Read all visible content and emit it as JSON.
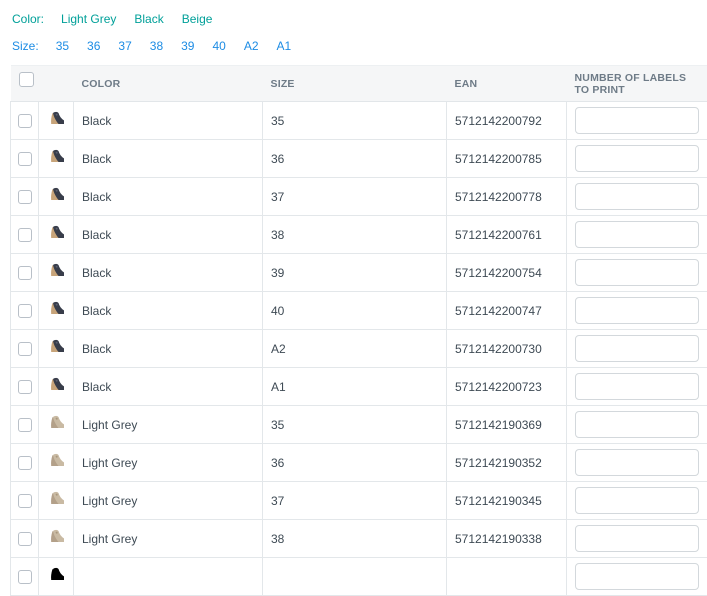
{
  "filters": {
    "color": {
      "label": "Color:",
      "options": [
        "Light Grey",
        "Black",
        "Beige"
      ]
    },
    "size": {
      "label": "Size:",
      "options": [
        "35",
        "36",
        "37",
        "38",
        "39",
        "40",
        "A2",
        "A1"
      ]
    }
  },
  "table": {
    "headers": {
      "color": "COLOR",
      "size": "SIZE",
      "ean": "EAN",
      "labels_to_print": "NUMBER OF LABELS TO PRINT"
    },
    "rows": [
      {
        "color": "Black",
        "size": "35",
        "ean": "5712142200792",
        "labels_value": "",
        "selected": false,
        "shoe_icon": "black-wedge-boot"
      },
      {
        "color": "Black",
        "size": "36",
        "ean": "5712142200785",
        "labels_value": "",
        "selected": false,
        "shoe_icon": "black-wedge-boot"
      },
      {
        "color": "Black",
        "size": "37",
        "ean": "5712142200778",
        "labels_value": "",
        "selected": false,
        "shoe_icon": "black-wedge-boot"
      },
      {
        "color": "Black",
        "size": "38",
        "ean": "5712142200761",
        "labels_value": "",
        "selected": false,
        "shoe_icon": "black-wedge-boot"
      },
      {
        "color": "Black",
        "size": "39",
        "ean": "5712142200754",
        "labels_value": "",
        "selected": false,
        "shoe_icon": "black-wedge-boot"
      },
      {
        "color": "Black",
        "size": "40",
        "ean": "5712142200747",
        "labels_value": "",
        "selected": false,
        "shoe_icon": "black-wedge-boot"
      },
      {
        "color": "Black",
        "size": "A2",
        "ean": "5712142200730",
        "labels_value": "",
        "selected": false,
        "shoe_icon": "black-wedge-boot"
      },
      {
        "color": "Black",
        "size": "A1",
        "ean": "5712142200723",
        "labels_value": "",
        "selected": false,
        "shoe_icon": "black-wedge-boot"
      },
      {
        "color": "Light Grey",
        "size": "35",
        "ean": "5712142190369",
        "labels_value": "",
        "selected": false,
        "shoe_icon": "light-grey-wedge-boot"
      },
      {
        "color": "Light Grey",
        "size": "36",
        "ean": "5712142190352",
        "labels_value": "",
        "selected": false,
        "shoe_icon": "light-grey-wedge-boot"
      },
      {
        "color": "Light Grey",
        "size": "37",
        "ean": "5712142190345",
        "labels_value": "",
        "selected": false,
        "shoe_icon": "light-grey-wedge-boot"
      },
      {
        "color": "Light Grey",
        "size": "38",
        "ean": "5712142190338",
        "labels_value": "",
        "selected": false,
        "shoe_icon": "light-grey-wedge-boot"
      }
    ],
    "partial_row_visible": true,
    "select_all_checked": false
  },
  "colors": {
    "color_filter_accent": "#00a099",
    "size_filter_accent": "#1d8ce4",
    "header_text": "#6e7b87",
    "body_text": "#3e4a54",
    "border": "#e3e7ea",
    "header_background": "#f5f6f7"
  }
}
